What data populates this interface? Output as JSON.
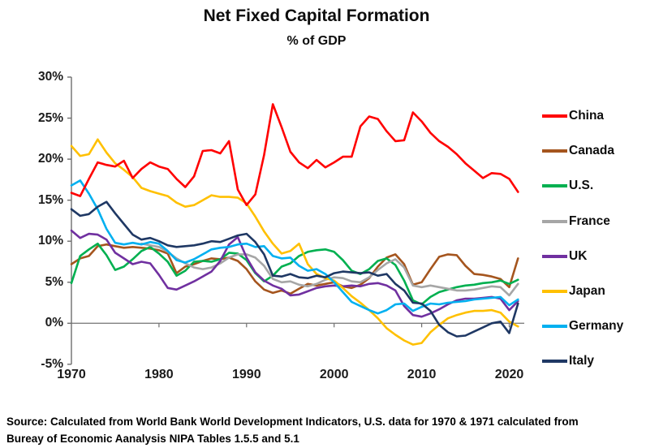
{
  "title": "Net Fixed Capital Formation",
  "subtitle": "% of GDP",
  "source": {
    "line1": "Source:  Calculated from World Bank World Development Indicators, U.S. data for 1970 & 1971 calculated from",
    "line2": "Bureay of Economic Aanalysis NIPA Tables 1.5.5 and 5.1"
  },
  "chart_data": {
    "type": "line",
    "title": "Net Fixed Capital Formation",
    "subtitle": "% of GDP",
    "xlabel": "",
    "ylabel": "",
    "xlim": [
      1970,
      2021.7
    ],
    "ylim": [
      -5,
      30
    ],
    "grid": "zero-line-only",
    "legend_position": "right",
    "axis_color": "#6e6e6e",
    "zero_line_color": "#808080",
    "x_ticks": [
      {
        "year": 1970,
        "label": "1970"
      },
      {
        "year": 1980,
        "label": "1980"
      },
      {
        "year": 1990,
        "label": "1990"
      },
      {
        "year": 2000,
        "label": "2000"
      },
      {
        "year": 2010,
        "label": "2010"
      },
      {
        "year": 2020,
        "label": "2020"
      }
    ],
    "y_ticks": [
      {
        "value": 30,
        "label": "30%"
      },
      {
        "value": 25,
        "label": "25%"
      },
      {
        "value": 20,
        "label": "20%"
      },
      {
        "value": 15,
        "label": "15%"
      },
      {
        "value": 10,
        "label": "10%"
      },
      {
        "value": 5,
        "label": "5%"
      },
      {
        "value": 0,
        "label": "0%"
      },
      {
        "value": -5,
        "label": "-5%"
      }
    ],
    "series": [
      {
        "name": "China",
        "color": "#FF0000",
        "start_year": 1970,
        "values": [
          15.9,
          15.5,
          17.6,
          19.6,
          19.3,
          19.1,
          19.8,
          17.7,
          18.8,
          19.6,
          19.1,
          18.8,
          17.6,
          16.6,
          17.9,
          21.0,
          21.1,
          20.7,
          22.2,
          16.3,
          14.4,
          15.7,
          20.5,
          26.7,
          23.9,
          20.9,
          19.6,
          18.9,
          19.9,
          19.0,
          19.6,
          20.3,
          20.3,
          24.0,
          25.2,
          24.9,
          23.4,
          22.2,
          22.3,
          25.7,
          24.6,
          23.2,
          22.2,
          21.5,
          20.6,
          19.5,
          18.6,
          17.7,
          18.3,
          18.2,
          17.6,
          16.0
        ]
      },
      {
        "name": "Canada",
        "color": "#A5551E",
        "start_year": 1970,
        "values": [
          7.2,
          7.9,
          8.2,
          9.4,
          9.6,
          9.4,
          9.2,
          9.3,
          9.2,
          9.1,
          8.9,
          8.5,
          6.1,
          6.9,
          7.2,
          7.6,
          7.9,
          7.8,
          8.0,
          7.6,
          6.6,
          5.1,
          4.1,
          3.7,
          4.0,
          3.6,
          4.2,
          4.8,
          4.6,
          4.8,
          5.0,
          4.5,
          4.3,
          4.7,
          5.5,
          6.9,
          8.0,
          8.4,
          7.2,
          4.7,
          5.0,
          6.6,
          8.1,
          8.4,
          8.3,
          7.0,
          6.0,
          5.9,
          5.7,
          5.4,
          4.4,
          7.9
        ]
      },
      {
        "name": "U.S.",
        "color": "#00B050",
        "start_year": 1970,
        "values": [
          4.9,
          8.2,
          9.0,
          9.7,
          8.3,
          6.5,
          6.9,
          7.8,
          8.8,
          9.3,
          8.5,
          7.5,
          5.8,
          6.4,
          7.5,
          7.6,
          7.5,
          7.8,
          8.6,
          8.5,
          7.7,
          6.1,
          5.1,
          5.8,
          6.9,
          7.3,
          8.2,
          8.7,
          8.9,
          9.0,
          8.7,
          7.7,
          6.4,
          6.0,
          6.6,
          7.6,
          7.9,
          7.1,
          5.2,
          2.8,
          2.3,
          3.2,
          3.8,
          4.1,
          4.4,
          4.6,
          4.7,
          4.9,
          5.0,
          5.2,
          4.8,
          5.3
        ]
      },
      {
        "name": "France",
        "color": "#A6A6A6",
        "start_year": 1978,
        "values": [
          9.7,
          9.5,
          9.3,
          8.7,
          7.9,
          7.3,
          6.8,
          6.6,
          6.8,
          7.3,
          8.0,
          8.4,
          8.4,
          8.0,
          7.0,
          5.4,
          5.0,
          5.1,
          4.7,
          4.5,
          4.8,
          5.3,
          5.6,
          5.5,
          5.1,
          5.0,
          5.6,
          6.5,
          7.3,
          7.8,
          6.8,
          4.6,
          4.4,
          4.6,
          4.4,
          4.2,
          4.0,
          4.0,
          4.1,
          4.3,
          4.5,
          4.4,
          3.4,
          4.8
        ]
      },
      {
        "name": "UK",
        "color": "#7030A0",
        "start_year": 1970,
        "values": [
          11.3,
          10.4,
          10.9,
          10.8,
          10.2,
          8.6,
          7.9,
          7.2,
          7.5,
          7.3,
          5.9,
          4.3,
          4.1,
          4.6,
          5.1,
          5.7,
          6.3,
          7.6,
          9.6,
          10.5,
          8.0,
          6.2,
          5.2,
          4.6,
          4.2,
          3.4,
          3.5,
          3.9,
          4.3,
          4.5,
          4.6,
          4.5,
          4.6,
          4.5,
          4.8,
          4.9,
          4.6,
          4.0,
          2.1,
          1.0,
          0.8,
          1.2,
          1.7,
          2.3,
          2.8,
          3.0,
          3.0,
          3.1,
          3.2,
          3.0,
          1.6,
          2.7
        ]
      },
      {
        "name": "Japan",
        "color": "#FFC000",
        "start_year": 1970,
        "values": [
          21.6,
          20.4,
          20.6,
          22.4,
          20.8,
          19.5,
          18.7,
          17.8,
          16.5,
          16.1,
          15.8,
          15.5,
          14.7,
          14.2,
          14.4,
          15.0,
          15.6,
          15.4,
          15.4,
          15.3,
          14.6,
          13.0,
          11.2,
          9.7,
          8.5,
          8.8,
          9.7,
          7.2,
          6.0,
          5.5,
          5.2,
          4.3,
          3.3,
          2.5,
          1.6,
          0.6,
          -0.6,
          -1.4,
          -2.1,
          -2.6,
          -2.4,
          -1.1,
          -0.2,
          0.6,
          1.0,
          1.3,
          1.5,
          1.5,
          1.6,
          1.3,
          0.2,
          -0.4
        ]
      },
      {
        "name": "Germany",
        "color": "#00B0F0",
        "start_year": 1970,
        "values": [
          16.8,
          17.4,
          15.8,
          13.9,
          11.5,
          9.8,
          9.6,
          9.8,
          9.6,
          9.9,
          9.7,
          8.8,
          7.7,
          7.4,
          7.8,
          8.4,
          9.0,
          9.2,
          9.3,
          9.6,
          9.7,
          9.3,
          9.4,
          8.2,
          7.9,
          8.0,
          7.0,
          6.4,
          6.6,
          6.0,
          5.0,
          3.8,
          2.6,
          2.1,
          1.6,
          1.2,
          1.6,
          2.3,
          2.4,
          1.5,
          2.0,
          2.4,
          2.3,
          2.5,
          2.6,
          2.7,
          2.9,
          3.0,
          3.1,
          3.2,
          2.2,
          2.9
        ]
      },
      {
        "name": "Italy",
        "color": "#1F3864",
        "start_year": 1970,
        "values": [
          13.9,
          13.1,
          13.3,
          14.2,
          14.8,
          13.4,
          12.1,
          10.8,
          10.2,
          10.4,
          10.0,
          9.5,
          9.3,
          9.4,
          9.5,
          9.7,
          10.0,
          9.9,
          10.3,
          10.7,
          10.9,
          9.9,
          8.4,
          5.8,
          5.7,
          6.0,
          5.6,
          5.5,
          5.8,
          5.6,
          6.1,
          6.3,
          6.2,
          6.1,
          6.2,
          5.8,
          6.0,
          4.8,
          4.0,
          2.5,
          2.4,
          1.5,
          -0.2,
          -1.1,
          -1.6,
          -1.5,
          -1.0,
          -0.5,
          0.0,
          0.2,
          -1.2,
          2.4
        ]
      }
    ]
  }
}
